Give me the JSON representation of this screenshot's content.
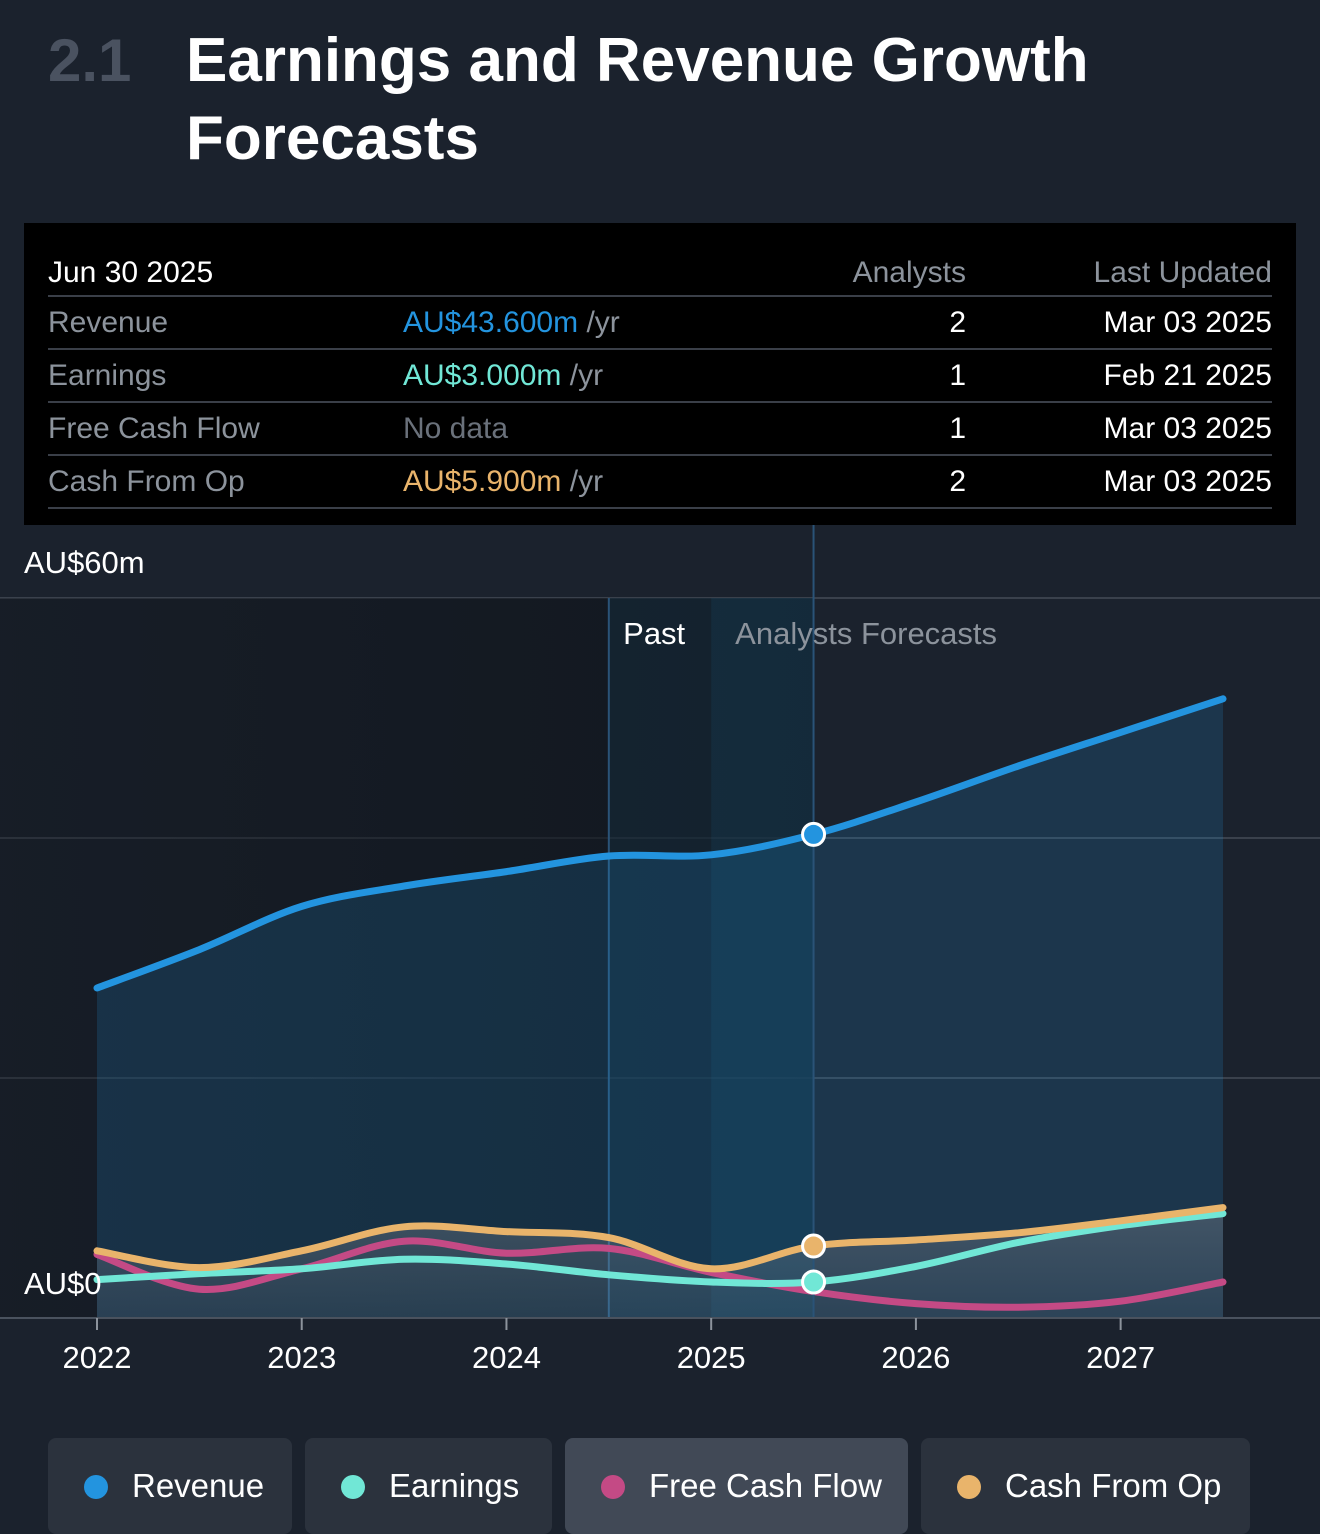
{
  "section": {
    "number": "2.1",
    "title": "Earnings and Revenue Growth Forecasts"
  },
  "forecast_table": {
    "date": "Jun 30 2025",
    "col_analysts": "Analysts",
    "col_updated": "Last Updated",
    "rows": [
      {
        "name": "Revenue",
        "value": "AU$43.600m",
        "unit": "/yr",
        "analysts": "2",
        "updated": "Mar 03 2025",
        "color": "#2394df"
      },
      {
        "name": "Earnings",
        "value": "AU$3.000m",
        "unit": "/yr",
        "analysts": "1",
        "updated": "Feb 21 2025",
        "color": "#71e7d6"
      },
      {
        "name": "Free Cash Flow",
        "value": "No data",
        "unit": "",
        "analysts": "1",
        "updated": "Mar 03 2025",
        "color": "#6a717b"
      },
      {
        "name": "Cash From Op",
        "value": "AU$5.900m",
        "unit": "/yr",
        "analysts": "2",
        "updated": "Mar 03 2025",
        "color": "#e9b46b"
      }
    ]
  },
  "chart_data": {
    "type": "area",
    "title": "",
    "y_top_label": "AU$60m",
    "y_zero_label": "AU$0",
    "ylim": [
      -3,
      57
    ],
    "xlim": [
      2022,
      2028.5
    ],
    "x_ticks": [
      "2022",
      "2023",
      "2024",
      "2025",
      "2026",
      "2027"
    ],
    "past_label": "Past",
    "forecast_label": "Analysts Forecasts",
    "past_shade_start": 2024.5,
    "today": 2025.5,
    "gridlines": [
      57,
      37,
      17,
      -3
    ],
    "series": [
      {
        "name": "Revenue",
        "color": "#2394df",
        "points": [
          [
            2022.0,
            24.5
          ],
          [
            2022.5,
            27.7
          ],
          [
            2023.0,
            31.3
          ],
          [
            2023.5,
            33.0
          ],
          [
            2024.0,
            34.2
          ],
          [
            2024.5,
            35.5
          ],
          [
            2025.0,
            35.6
          ],
          [
            2025.5,
            37.3
          ],
          [
            2026.0,
            40.0
          ],
          [
            2026.5,
            43.0
          ],
          [
            2027.0,
            45.8
          ],
          [
            2027.5,
            48.6
          ]
        ]
      },
      {
        "name": "Earnings",
        "color": "#71e7d6",
        "points": [
          [
            2022.0,
            0.2
          ],
          [
            2022.5,
            0.7
          ],
          [
            2023.0,
            1.1
          ],
          [
            2023.5,
            1.9
          ],
          [
            2024.0,
            1.5
          ],
          [
            2024.5,
            0.6
          ],
          [
            2025.0,
            0.0
          ],
          [
            2025.5,
            0.0
          ],
          [
            2026.0,
            1.3
          ],
          [
            2026.5,
            3.3
          ],
          [
            2027.0,
            4.7
          ],
          [
            2027.5,
            5.7
          ]
        ]
      },
      {
        "name": "Free Cash Flow",
        "color": "#c44a85",
        "points": [
          [
            2022.0,
            2.3
          ],
          [
            2022.5,
            -0.6
          ],
          [
            2023.0,
            1.1
          ],
          [
            2023.5,
            3.4
          ],
          [
            2024.0,
            2.4
          ],
          [
            2024.5,
            2.8
          ],
          [
            2025.0,
            0.8
          ],
          [
            2025.5,
            -0.8
          ],
          [
            2026.0,
            -1.8
          ],
          [
            2026.5,
            -2.1
          ],
          [
            2027.0,
            -1.6
          ],
          [
            2027.5,
            0.0
          ]
        ]
      },
      {
        "name": "Cash From Op",
        "color": "#e9b46b",
        "points": [
          [
            2022.0,
            2.6
          ],
          [
            2022.5,
            1.2
          ],
          [
            2023.0,
            2.6
          ],
          [
            2023.5,
            4.6
          ],
          [
            2024.0,
            4.2
          ],
          [
            2024.5,
            3.7
          ],
          [
            2025.0,
            1.1
          ],
          [
            2025.5,
            3.0
          ],
          [
            2026.0,
            3.5
          ],
          [
            2026.5,
            4.1
          ],
          [
            2027.0,
            5.1
          ],
          [
            2027.5,
            6.2
          ]
        ]
      }
    ]
  },
  "legend": [
    {
      "label": "Revenue",
      "color": "#2394df",
      "active": false
    },
    {
      "label": "Earnings",
      "color": "#71e7d6",
      "active": false
    },
    {
      "label": "Free Cash Flow",
      "color": "#c44a85",
      "active": true
    },
    {
      "label": "Cash From Op",
      "color": "#e9b46b",
      "active": false
    }
  ]
}
